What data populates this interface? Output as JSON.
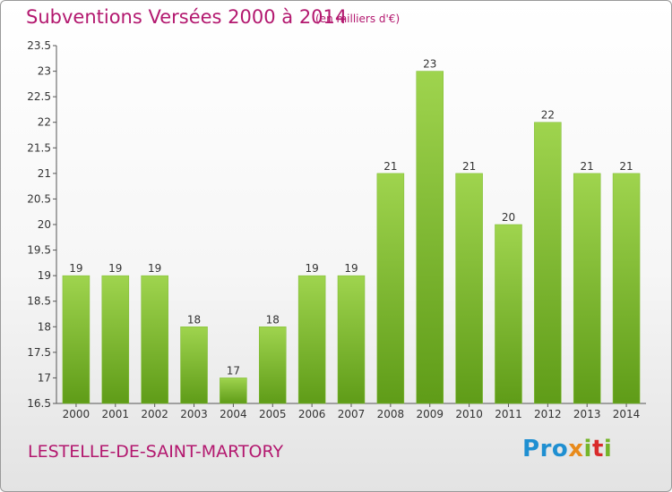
{
  "title": "Subventions Versées 2000 à 2014",
  "unit_note": "(en milliers d'€)",
  "commune": "LESTELLE-DE-SAINT-MARTORY",
  "logo": {
    "text": "Proxiti",
    "colors": [
      "#1f8fd1",
      "#e88a1b",
      "#75b52a",
      "#d92b2b"
    ]
  },
  "chart_data": {
    "type": "bar",
    "title": "Subventions Versées 2000 à 2014",
    "xlabel": "",
    "ylabel": "",
    "categories": [
      "2000",
      "2001",
      "2002",
      "2003",
      "2004",
      "2005",
      "2006",
      "2007",
      "2008",
      "2009",
      "2010",
      "2011",
      "2012",
      "2013",
      "2014"
    ],
    "values": [
      19,
      19,
      19,
      18,
      17,
      18,
      19,
      19,
      21,
      23,
      21,
      20,
      22,
      21,
      21
    ],
    "ylim": [
      16.5,
      23.5
    ],
    "yticks": [
      "16.5",
      "17",
      "17.5",
      "18",
      "18.5",
      "19",
      "19.5",
      "20",
      "20.5",
      "21",
      "21.5",
      "22",
      "22.5",
      "23",
      "23.5"
    ],
    "grid": false,
    "bar_color_top": "#9fd44e",
    "bar_color_bottom": "#5f9c18"
  }
}
